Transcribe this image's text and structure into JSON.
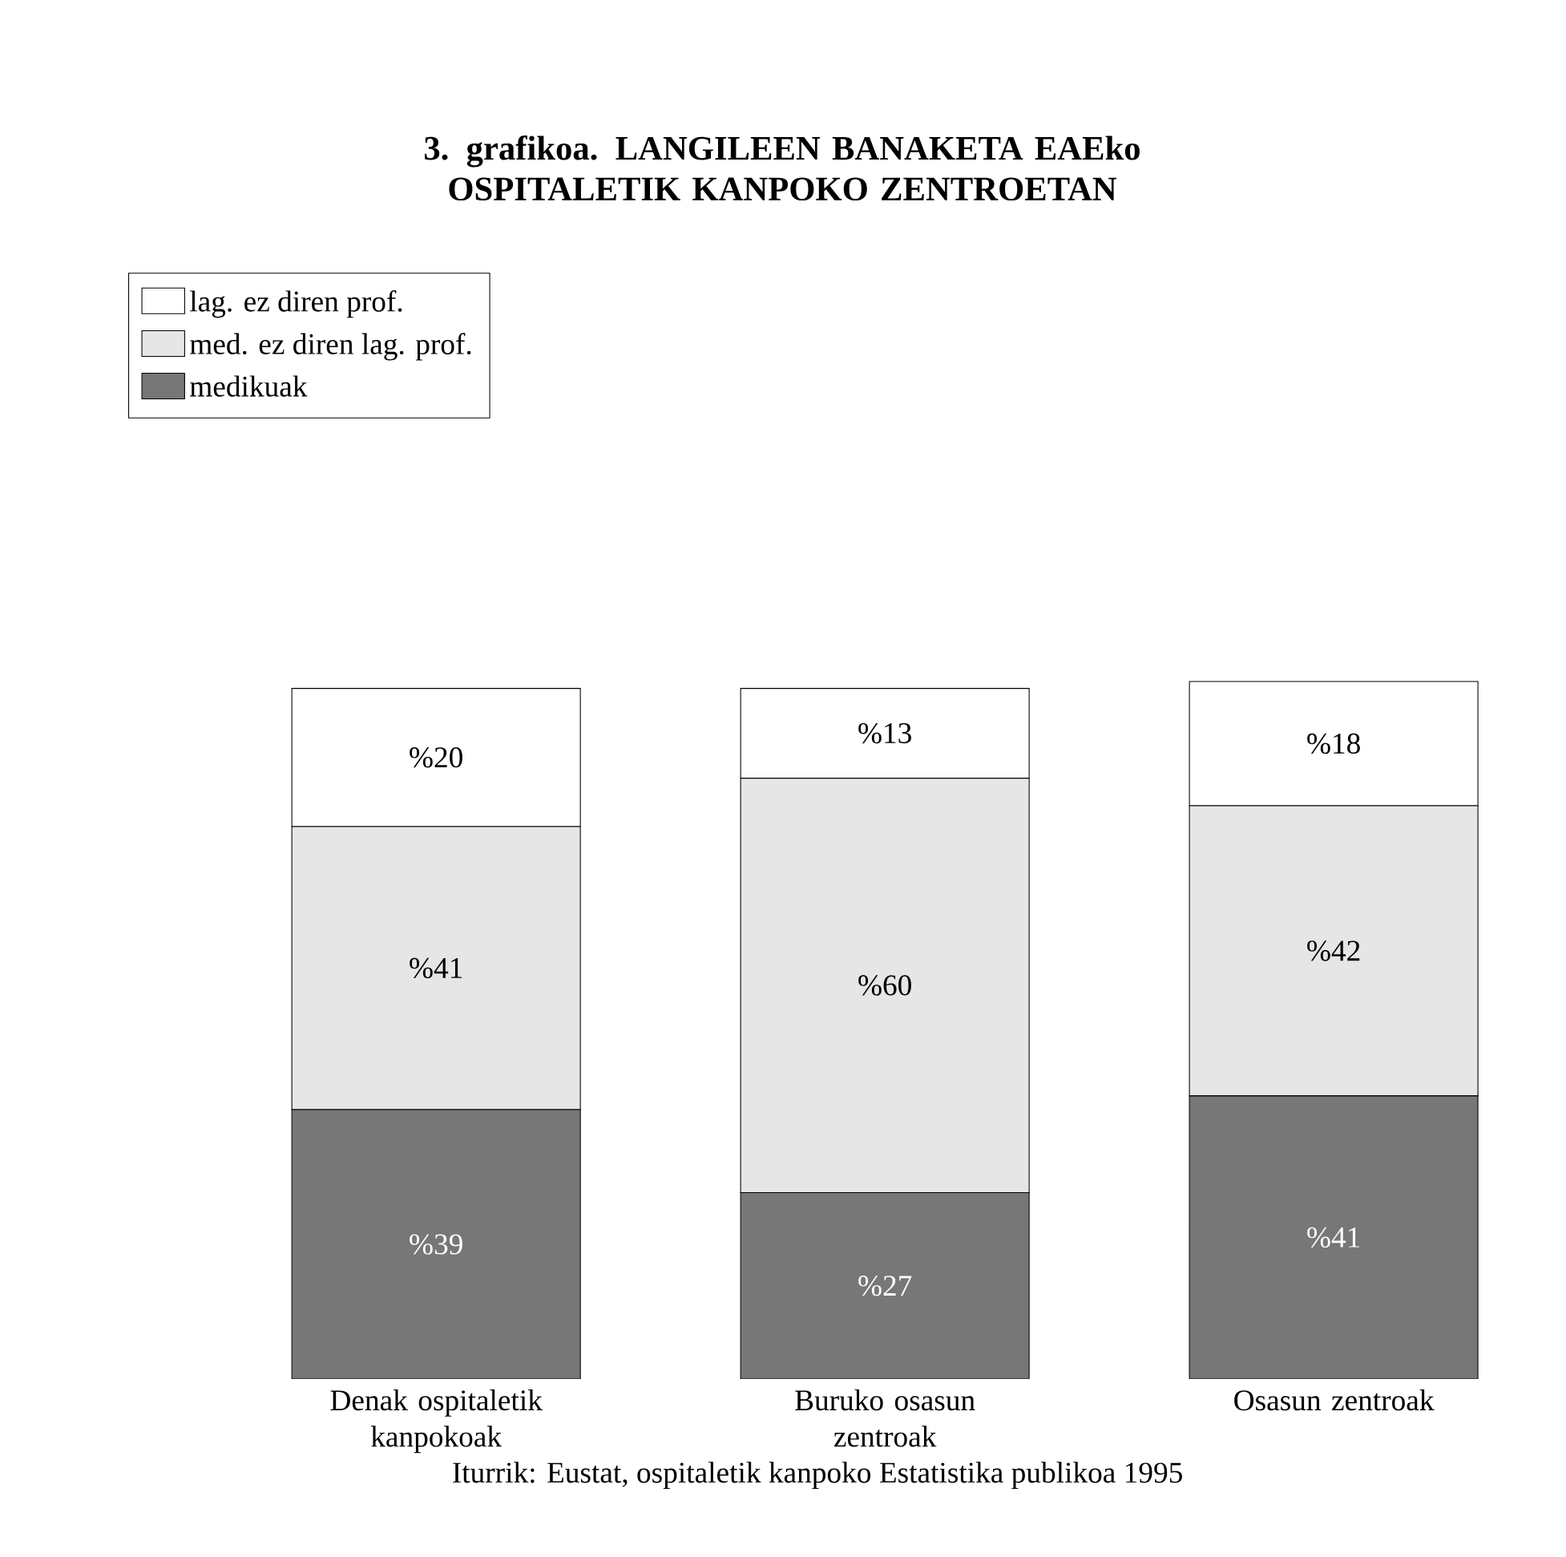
{
  "chart_data": {
    "type": "bar",
    "stacked": true,
    "title": "3. grafikoa.    LANGILEEN BANAKETA EAEko OSPITALETIK KANPOKO ZENTROETAN",
    "categories": [
      "Denak ospitaletik kanpokoak",
      "Buruko osasun zentroak",
      "Osasun zentroak"
    ],
    "series": [
      {
        "name": "medikuak",
        "color": "#777777",
        "values": [
          39,
          27,
          41
        ],
        "value_labels": [
          "%39",
          "%27",
          "%41"
        ]
      },
      {
        "name": "med. ez diren lag. prof.",
        "color": "#e6e6e6",
        "values": [
          41,
          60,
          42
        ],
        "value_labels": [
          "%41",
          "%60",
          "%42"
        ]
      },
      {
        "name": "lag. ez diren prof.",
        "color": "#ffffff",
        "values": [
          20,
          13,
          18
        ],
        "value_labels": [
          "%20",
          "%13",
          "%18"
        ]
      }
    ],
    "legend": "top left",
    "annotations": [
      "Iturrik: Eustat, ospitaletik kanpoko Estatistika publikoa 1995"
    ]
  }
}
